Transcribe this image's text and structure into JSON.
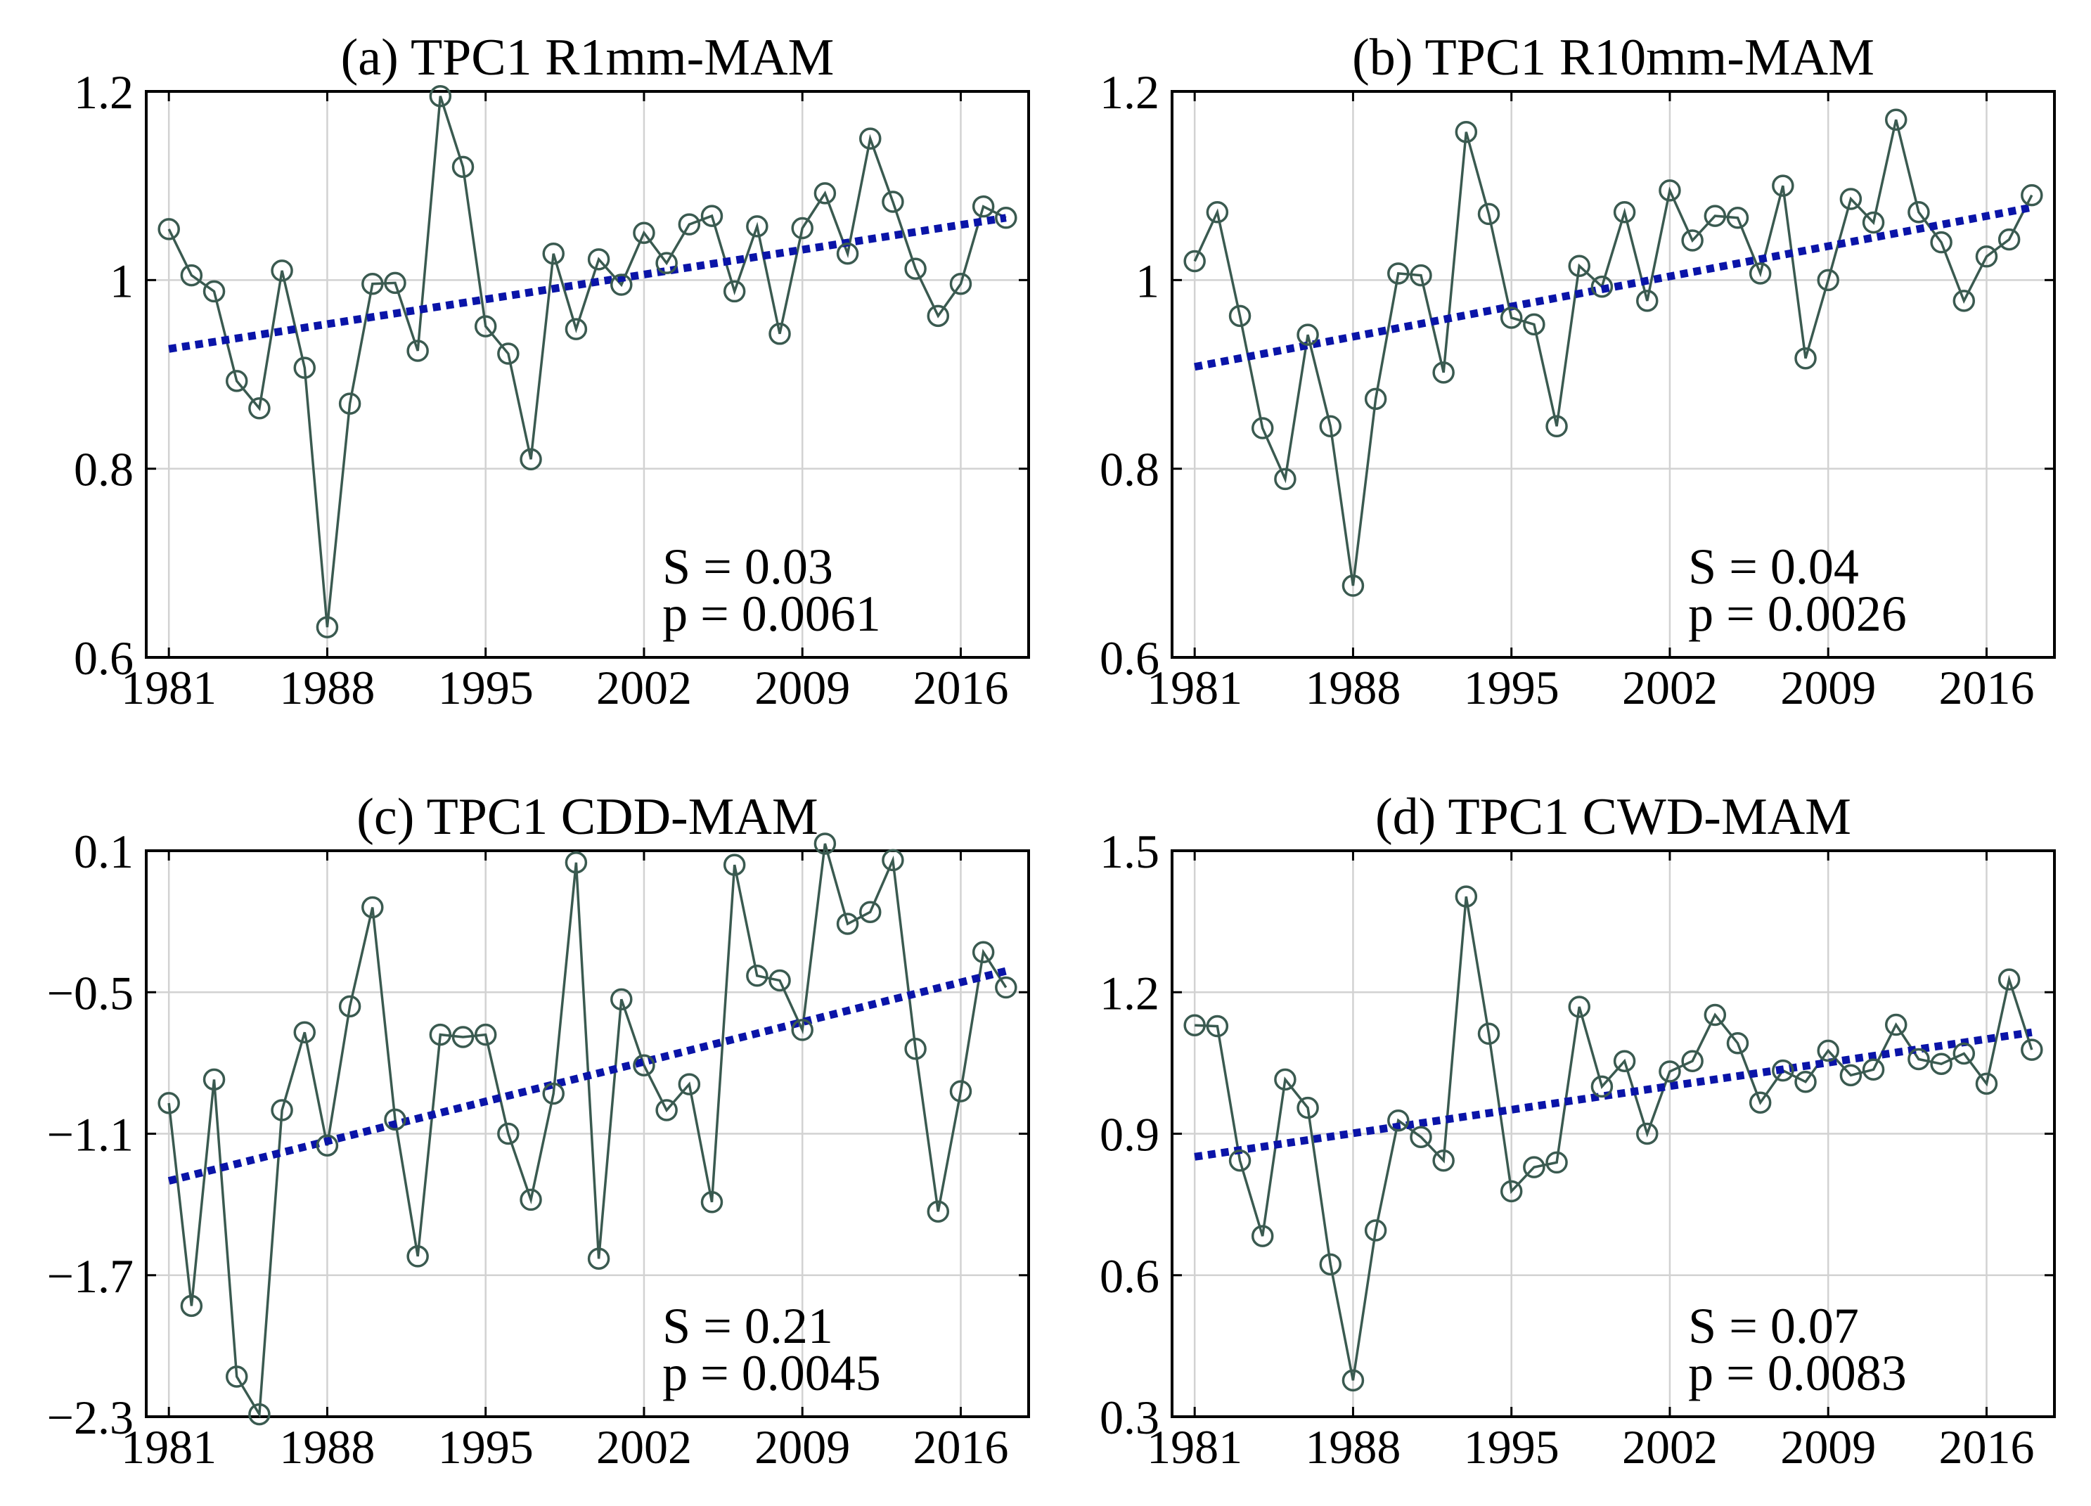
{
  "colors": {
    "series": "#3a5a50",
    "trend": "#0a14a8",
    "grid": "#d2d2d2"
  },
  "chart_data": [
    {
      "type": "line",
      "title": "(a) TPC1 R1mm-MAM",
      "x": [
        1981,
        1982,
        1983,
        1984,
        1985,
        1986,
        1987,
        1988,
        1989,
        1990,
        1991,
        1992,
        1993,
        1994,
        1995,
        1996,
        1997,
        1998,
        1999,
        2000,
        2001,
        2002,
        2003,
        2004,
        2005,
        2006,
        2007,
        2008,
        2009,
        2010,
        2011,
        2012,
        2013,
        2014,
        2015,
        2016,
        2017,
        2018
      ],
      "series": [
        {
          "name": "TPC1 R1mm-MAM",
          "values": [
            1.054,
            1.005,
            0.988,
            0.893,
            0.864,
            1.01,
            0.907,
            0.632,
            0.869,
            0.996,
            0.997,
            0.925,
            1.195,
            1.12,
            0.951,
            0.922,
            0.81,
            1.028,
            0.948,
            1.022,
            0.995,
            1.05,
            1.018,
            1.059,
            1.068,
            0.988,
            1.057,
            0.943,
            1.055,
            1.092,
            1.028,
            1.15,
            1.083,
            1.012,
            0.962,
            0.996,
            1.078,
            1.066
          ]
        }
      ],
      "trend": {
        "x": [
          1981,
          2018
        ],
        "y": [
          0.927,
          1.066
        ]
      },
      "annotation": {
        "S": "S = 0.03",
        "p": "p = 0.0061"
      },
      "xticks": [
        1981,
        1988,
        1995,
        2002,
        2009,
        2016
      ],
      "xtick_labels": [
        "1981",
        "1988",
        "1995",
        "2002",
        "2009",
        "2016"
      ],
      "yticks": [
        0.6,
        0.8,
        1.0,
        1.2
      ],
      "ytick_labels": [
        "0.6",
        "0.8",
        "1",
        "1.2"
      ],
      "xlim": [
        1980,
        2019
      ],
      "ylim": [
        0.6,
        1.2
      ],
      "xlabel": "",
      "ylabel": "",
      "grid": true
    },
    {
      "type": "line",
      "title": "(b) TPC1 R10mm-MAM",
      "x": [
        1981,
        1982,
        1983,
        1984,
        1985,
        1986,
        1987,
        1988,
        1989,
        1990,
        1991,
        1992,
        1993,
        1994,
        1995,
        1996,
        1997,
        1998,
        1999,
        2000,
        2001,
        2002,
        2003,
        2004,
        2005,
        2006,
        2007,
        2008,
        2009,
        2010,
        2011,
        2012,
        2013,
        2014,
        2015,
        2016,
        2017,
        2018
      ],
      "series": [
        {
          "name": "TPC1 R10mm-MAM",
          "values": [
            1.02,
            1.072,
            0.962,
            0.843,
            0.789,
            0.942,
            0.845,
            0.676,
            0.874,
            1.007,
            1.005,
            0.902,
            1.157,
            1.07,
            0.96,
            0.953,
            0.845,
            1.015,
            0.993,
            1.072,
            0.978,
            1.095,
            1.042,
            1.068,
            1.066,
            1.007,
            1.1,
            0.917,
            1.0,
            1.086,
            1.061,
            1.17,
            1.072,
            1.04,
            0.978,
            1.025,
            1.043,
            1.09
          ]
        }
      ],
      "trend": {
        "x": [
          1981,
          2018
        ],
        "y": [
          0.908,
          1.077
        ]
      },
      "annotation": {
        "S": "S = 0.04",
        "p": "p = 0.0026"
      },
      "xticks": [
        1981,
        1988,
        1995,
        2002,
        2009,
        2016
      ],
      "xtick_labels": [
        "1981",
        "1988",
        "1995",
        "2002",
        "2009",
        "2016"
      ],
      "yticks": [
        0.6,
        0.8,
        1.0,
        1.2
      ],
      "ytick_labels": [
        "0.6",
        "0.8",
        "1",
        "1.2"
      ],
      "xlim": [
        1980,
        2019
      ],
      "ylim": [
        0.6,
        1.2
      ],
      "xlabel": "",
      "ylabel": "",
      "grid": true
    },
    {
      "type": "line",
      "title": "(c) TPC1 CDD-MAM",
      "x": [
        1981,
        1982,
        1983,
        1984,
        1985,
        1986,
        1987,
        1988,
        1989,
        1990,
        1991,
        1992,
        1993,
        1994,
        1995,
        1996,
        1997,
        1998,
        1999,
        2000,
        2001,
        2002,
        2003,
        2004,
        2005,
        2006,
        2007,
        2008,
        2009,
        2010,
        2011,
        2012,
        2013,
        2014,
        2015,
        2016,
        2017,
        2018
      ],
      "series": [
        {
          "name": "TPC1 CDD-MAM",
          "values": [
            -0.97,
            -1.83,
            -0.87,
            -2.13,
            -2.29,
            -1.0,
            -0.67,
            -1.15,
            -0.56,
            -0.14,
            -1.04,
            -1.62,
            -0.68,
            -0.69,
            -0.68,
            -1.1,
            -1.38,
            -0.93,
            0.05,
            -1.63,
            -0.53,
            -0.81,
            -1.0,
            -0.89,
            -1.39,
            0.04,
            -0.43,
            -0.45,
            -0.66,
            0.13,
            -0.21,
            -0.16,
            0.06,
            -0.74,
            -1.43,
            -0.92,
            -0.33,
            -0.48
          ]
        }
      ],
      "trend": {
        "x": [
          1981,
          2018
        ],
        "y": [
          -1.3,
          -0.41
        ]
      },
      "annotation": {
        "S": "S = 0.21",
        "p": "p = 0.0045"
      },
      "xticks": [
        1981,
        1988,
        1995,
        2002,
        2009,
        2016
      ],
      "xtick_labels": [
        "1981",
        "1988",
        "1995",
        "2002",
        "2009",
        "2016"
      ],
      "yticks": [
        -2.3,
        -1.7,
        -1.1,
        -0.5,
        0.1
      ],
      "ytick_labels": [
        "-2.3",
        "-1.7",
        "-1.1",
        "-0.5",
        "0.1"
      ],
      "xlim": [
        1980,
        2019
      ],
      "ylim": [
        -2.3,
        0.1
      ],
      "xlabel": "",
      "ylabel": "",
      "grid": true
    },
    {
      "type": "line",
      "title": "(d) TPC1 CWD-MAM",
      "x": [
        1981,
        1982,
        1983,
        1984,
        1985,
        1986,
        1987,
        1988,
        1989,
        1990,
        1991,
        1992,
        1993,
        1994,
        1995,
        1996,
        1997,
        1998,
        1999,
        2000,
        2001,
        2002,
        2003,
        2004,
        2005,
        2006,
        2007,
        2008,
        2009,
        2010,
        2011,
        2012,
        2013,
        2014,
        2015,
        2016,
        2017,
        2018
      ],
      "series": [
        {
          "name": "TPC1 CWD-MAM",
          "values": [
            1.13,
            1.128,
            0.843,
            0.683,
            1.015,
            0.955,
            0.623,
            0.377,
            0.695,
            0.928,
            0.893,
            0.843,
            1.403,
            1.112,
            0.778,
            0.829,
            0.839,
            1.169,
            1.0,
            1.054,
            0.9,
            1.032,
            1.054,
            1.152,
            1.092,
            0.966,
            1.034,
            1.01,
            1.076,
            1.024,
            1.036,
            1.131,
            1.058,
            1.048,
            1.07,
            1.006,
            1.227,
            1.078
          ]
        }
      ],
      "trend": {
        "x": [
          1981,
          2018
        ],
        "y": [
          0.851,
          1.115
        ]
      },
      "annotation": {
        "S": "S = 0.07",
        "p": "p = 0.0083"
      },
      "xticks": [
        1981,
        1988,
        1995,
        2002,
        2009,
        2016
      ],
      "xtick_labels": [
        "1981",
        "1988",
        "1995",
        "2002",
        "2009",
        "2016"
      ],
      "yticks": [
        0.3,
        0.6,
        0.9,
        1.2,
        1.5
      ],
      "ytick_labels": [
        "0.3",
        "0.6",
        "0.9",
        "1.2",
        "1.5"
      ],
      "xlim": [
        1980,
        2019
      ],
      "ylim": [
        0.3,
        1.5
      ],
      "xlabel": "",
      "ylabel": "",
      "grid": true
    }
  ]
}
